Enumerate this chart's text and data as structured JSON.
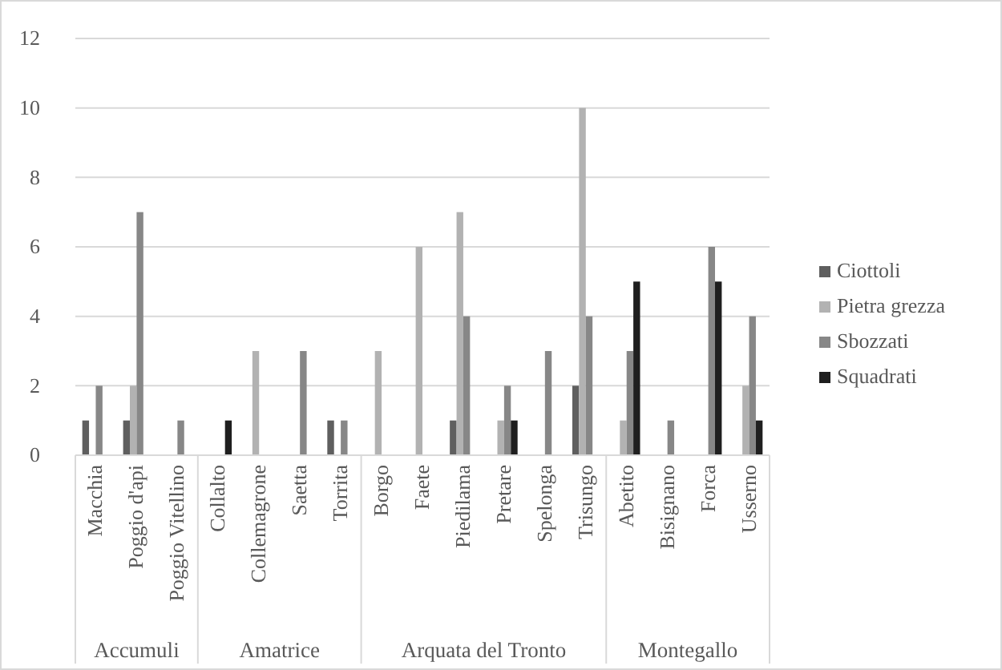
{
  "chart_data": {
    "type": "bar",
    "categories": [
      "Macchia",
      "Poggio d'api",
      "Poggio Vitellino",
      "Collalto",
      "Collemagrone",
      "Saetta",
      "Torrita",
      "Borgo",
      "Faete",
      "Piedilama",
      "Pretare",
      "Spelonga",
      "Trisungo",
      "Abetito",
      "Bisignano",
      "Forca",
      "Usserno"
    ],
    "series": [
      {
        "name": "Ciottoli",
        "color": "#5f5f5f",
        "values": [
          1,
          1,
          null,
          null,
          null,
          null,
          1,
          null,
          null,
          1,
          null,
          null,
          2,
          null,
          null,
          null,
          null
        ]
      },
      {
        "name": "Pietra grezza",
        "color": "#b2b2b2",
        "values": [
          null,
          2,
          null,
          null,
          3,
          null,
          null,
          3,
          6,
          7,
          1,
          null,
          10,
          1,
          null,
          null,
          2
        ]
      },
      {
        "name": "Sbozzati",
        "color": "#878787",
        "values": [
          2,
          7,
          1,
          null,
          null,
          3,
          1,
          null,
          null,
          4,
          2,
          3,
          4,
          3,
          1,
          6,
          4
        ]
      },
      {
        "name": "Squadrati",
        "color": "#1f1f1f",
        "values": [
          null,
          null,
          null,
          1,
          null,
          null,
          null,
          null,
          null,
          null,
          1,
          null,
          null,
          5,
          null,
          5,
          1
        ]
      }
    ],
    "annotations": [
      "Accumuli",
      "Amatrice",
      "Arquata del Tronto",
      "Montegallo"
    ],
    "ylim": [
      0,
      12
    ],
    "yticks": [
      0,
      2,
      4,
      6,
      8,
      10,
      12
    ],
    "grid": "y",
    "legend": "right"
  }
}
